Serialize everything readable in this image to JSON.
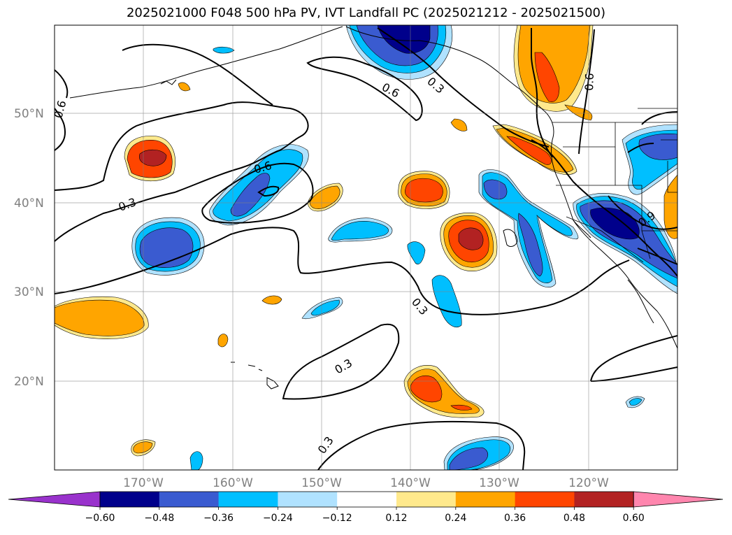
{
  "title": "2025021000 F048 500 hPa PV, IVT Landfall PC (2025021212 - 2025021500)",
  "lat_labels": [
    "50°N",
    "40°N",
    "30°N",
    "20°N"
  ],
  "lon_labels": [
    "170°W",
    "160°W",
    "150°W",
    "140°W",
    "130°W",
    "120°W"
  ],
  "contour_labels": [
    "0.6",
    "0.3",
    "0.6",
    "0.6",
    "0.3",
    "0.3",
    "0.3",
    "0.6",
    "0.3",
    "0.9"
  ],
  "colorbar": {
    "ticks": [
      "−0.60",
      "−0.48",
      "−0.36",
      "−0.24",
      "−0.12",
      "0.12",
      "0.24",
      "0.36",
      "0.48",
      "0.60"
    ],
    "colors": [
      "#9932cc",
      "#00008b",
      "#3a5bd0",
      "#00bfff",
      "#b0e2ff",
      "#ffffff",
      "#ffe98c",
      "#ffa500",
      "#ff4500",
      "#b22222",
      "#ff86ae"
    ]
  }
}
